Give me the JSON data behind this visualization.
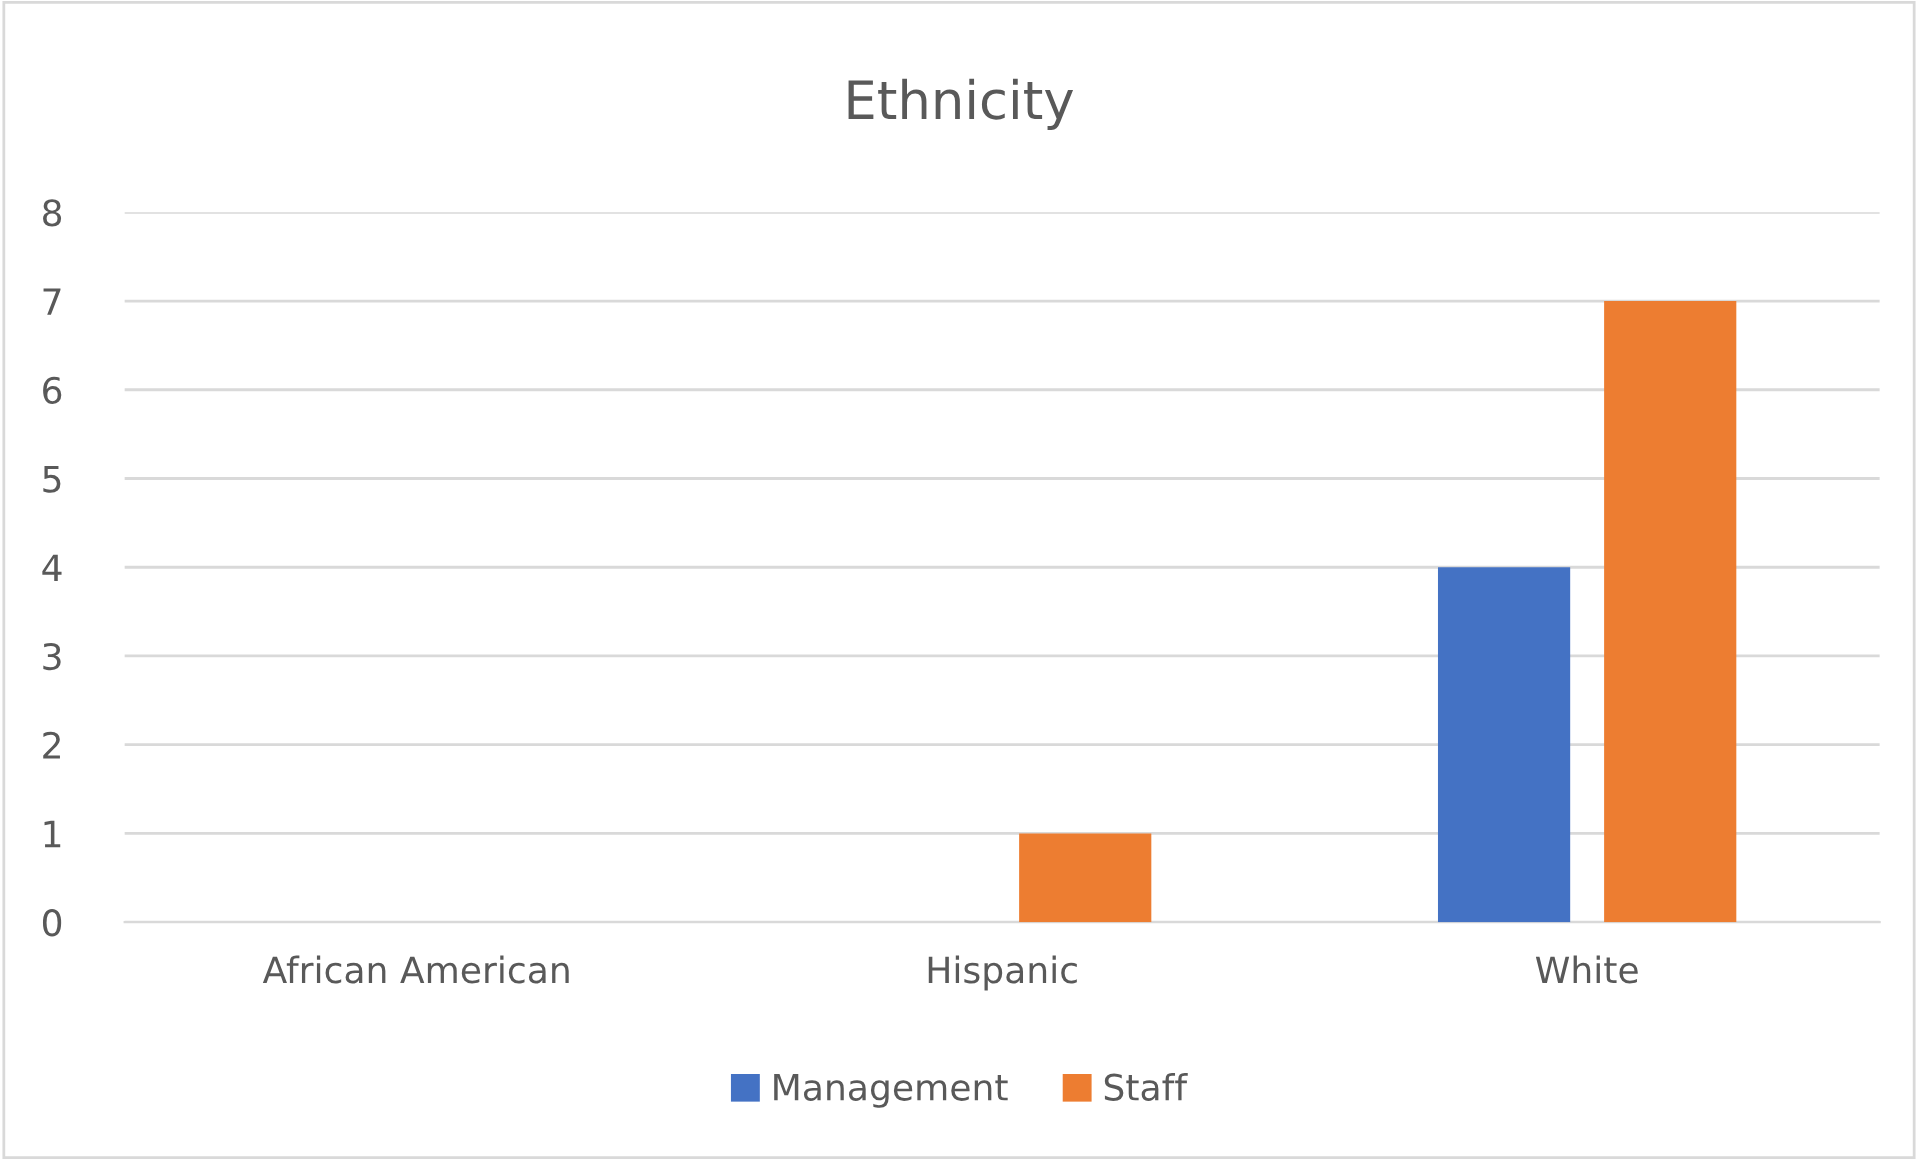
{
  "chart_data": {
    "type": "bar",
    "title": "Ethnicity",
    "categories": [
      "African American",
      "Hispanic",
      "White"
    ],
    "series": [
      {
        "name": "Management",
        "color": "#4472c4",
        "values": [
          0,
          0,
          4
        ]
      },
      {
        "name": "Staff",
        "color": "#ed7d31",
        "values": [
          0,
          1,
          7
        ]
      }
    ],
    "ylim": [
      0,
      8
    ],
    "yticks": [
      0,
      1,
      2,
      3,
      4,
      5,
      6,
      7,
      8
    ],
    "grid": "y",
    "legend": "bottom"
  }
}
